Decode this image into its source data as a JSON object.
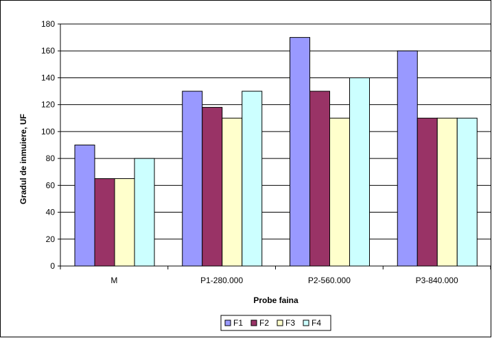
{
  "chart_data": {
    "type": "bar",
    "title": "",
    "xlabel": "Probe faina",
    "ylabel": "Gradul de inmuiere, UF",
    "categories": [
      "M",
      "P1-280.000",
      "P2-560.000",
      "P3-840.000"
    ],
    "series": [
      {
        "name": "F1",
        "color": "#9999ff",
        "values": [
          90,
          130,
          170,
          160
        ]
      },
      {
        "name": "F2",
        "color": "#993366",
        "values": [
          65,
          118,
          130,
          110
        ]
      },
      {
        "name": "F3",
        "color": "#ffffcc",
        "values": [
          65,
          110,
          110,
          110
        ]
      },
      {
        "name": "F4",
        "color": "#ccffff",
        "values": [
          80,
          130,
          140,
          110
        ]
      }
    ],
    "ylim": [
      0,
      180
    ],
    "ytick_step": 20,
    "yticks": [
      "0",
      "20",
      "40",
      "60",
      "80",
      "100",
      "120",
      "140",
      "160",
      "180"
    ],
    "grid": true,
    "gridline_color": "#000000",
    "legend_position": "bottom"
  }
}
